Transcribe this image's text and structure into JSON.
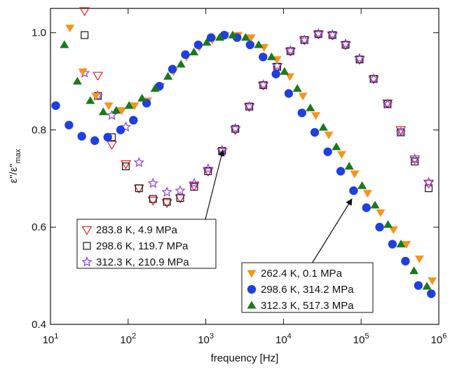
{
  "chart_data": {
    "type": "scatter",
    "xlabel": "frequency [Hz]",
    "ylabel": {
      "text": "ε\"/ε\"",
      "sub": "max"
    },
    "xscale": "log",
    "xlim": [
      10,
      1000000
    ],
    "ylim": [
      0.4,
      1.05
    ],
    "xticks": [
      {
        "value": 10,
        "label": "10",
        "exponent": "1"
      },
      {
        "value": 100,
        "label": "10",
        "exponent": "2"
      },
      {
        "value": 1000,
        "label": "10",
        "exponent": "3"
      },
      {
        "value": 10000,
        "label": "10",
        "exponent": "4"
      },
      {
        "value": 100000,
        "label": "10",
        "exponent": "5"
      },
      {
        "value": 1000000,
        "label": "10",
        "exponent": "6"
      }
    ],
    "yticks": [
      0.4,
      0.6,
      0.8,
      {
        "value": 1,
        "label": "1.0"
      }
    ],
    "series": [
      {
        "name": "283.8 K, 4.9 MPa",
        "color": "#e8202a",
        "marker": "triangle-down",
        "filled": false,
        "legend": "left",
        "x": [
          27.5,
          40.7,
          61.7,
          93.3,
          138,
          209,
          316,
          468,
          708,
          1070,
          1620,
          2400,
          3630,
          5500,
          8320,
          12300,
          18600,
          28200,
          42700,
          63100,
          95500,
          145000,
          219000,
          324000,
          490000,
          741000
        ],
        "values": [
          1.045,
          0.912,
          0.77,
          0.73,
          0.68,
          0.655,
          0.65,
          0.66,
          0.685,
          0.715,
          0.755,
          0.8,
          0.848,
          0.892,
          0.93,
          0.962,
          0.985,
          0.997,
          0.995,
          0.975,
          0.945,
          0.905,
          0.855,
          0.8,
          0.74,
          0.69
        ]
      },
      {
        "name": "298.6 K, 119.7 MPa",
        "color": "#111111",
        "marker": "square",
        "filled": false,
        "legend": "left",
        "x": [
          27.5,
          40.7,
          61.7,
          93.3,
          138,
          209,
          316,
          468,
          708,
          1070,
          1620,
          2400,
          3630,
          5500,
          8320,
          12300,
          18600,
          28200,
          42700,
          63100,
          95500,
          145000,
          219000,
          324000,
          490000,
          741000
        ],
        "values": [
          0.995,
          0.87,
          0.785,
          0.725,
          0.68,
          0.658,
          0.652,
          0.66,
          0.683,
          0.715,
          0.757,
          0.802,
          0.848,
          0.892,
          0.93,
          0.962,
          0.985,
          0.997,
          0.995,
          0.975,
          0.945,
          0.905,
          0.853,
          0.795,
          0.735,
          0.68
        ]
      },
      {
        "name": "312.3 K, 210.9 MPa",
        "color": "#8a3fd0",
        "marker": "star",
        "filled": false,
        "legend": "left",
        "x": [
          27.5,
          40.7,
          61.7,
          93.3,
          138,
          209,
          316,
          468,
          708,
          1070,
          1620,
          2400,
          3630,
          5500,
          8320,
          12300,
          18600,
          28200,
          42700,
          63100,
          95500,
          145000,
          219000,
          324000,
          490000,
          741000
        ],
        "values": [
          0.917,
          0.87,
          0.83,
          0.806,
          0.733,
          0.69,
          0.672,
          0.675,
          0.69,
          0.72,
          0.758,
          0.803,
          0.848,
          0.893,
          0.932,
          0.963,
          0.985,
          0.998,
          0.996,
          0.977,
          0.947,
          0.905,
          0.853,
          0.795,
          0.74,
          0.692
        ]
      },
      {
        "name": "262.4 K, 0.1 MPa",
        "color": "#f7941d",
        "marker": "triangle-down",
        "filled": true,
        "legend": "right",
        "x": [
          17.8,
          26.1,
          38.3,
          56.2,
          82.5,
          121,
          178,
          261,
          383,
          562,
          825,
          1210,
          1780,
          2610,
          3830,
          5620,
          8250,
          12100,
          17800,
          26100,
          38300,
          56200,
          82500,
          121000,
          178000,
          261000,
          383000,
          562000,
          825000
        ],
        "values": [
          1.01,
          0.92,
          0.87,
          0.85,
          0.84,
          0.85,
          0.86,
          0.89,
          0.92,
          0.95,
          0.97,
          0.985,
          0.995,
          0.995,
          0.99,
          0.97,
          0.945,
          0.91,
          0.87,
          0.83,
          0.79,
          0.75,
          0.71,
          0.67,
          0.63,
          0.595,
          0.565,
          0.535,
          0.49
        ]
      },
      {
        "name": "298.6 K, 314.2 MPa",
        "color": "#1f3fe0",
        "marker": "circle",
        "filled": true,
        "legend": "right",
        "x": [
          11.7,
          17.3,
          25.3,
          37.2,
          54.6,
          80,
          117,
          173,
          253,
          372,
          546,
          800,
          1170,
          1730,
          2530,
          3720,
          5460,
          8000,
          11700,
          17300,
          25300,
          37200,
          54600,
          80000,
          117000,
          173000,
          253000,
          372000,
          546000,
          800000
        ],
        "values": [
          0.85,
          0.81,
          0.787,
          0.778,
          0.785,
          0.8,
          0.82,
          0.855,
          0.89,
          0.925,
          0.955,
          0.975,
          0.99,
          0.995,
          0.99,
          0.975,
          0.95,
          0.915,
          0.875,
          0.835,
          0.795,
          0.755,
          0.715,
          0.675,
          0.64,
          0.6,
          0.565,
          0.53,
          0.48,
          0.463
        ]
      },
      {
        "name": "312.3 K, 517.3 MPa",
        "color": "#1a7a1a",
        "marker": "triangle-up",
        "filled": true,
        "legend": "right",
        "x": [
          15.1,
          22.2,
          32.6,
          47.9,
          70.3,
          103,
          151,
          222,
          326,
          479,
          703,
          1030,
          1510,
          2220,
          3260,
          4790,
          7030,
          10300,
          15100,
          22200,
          32600,
          47900,
          70300,
          103000,
          151000,
          222000,
          326000,
          479000,
          703000
        ],
        "values": [
          0.975,
          0.9,
          0.86,
          0.837,
          0.84,
          0.85,
          0.865,
          0.885,
          0.91,
          0.935,
          0.96,
          0.98,
          0.99,
          0.995,
          0.99,
          0.975,
          0.95,
          0.92,
          0.885,
          0.845,
          0.805,
          0.765,
          0.725,
          0.685,
          0.645,
          0.605,
          0.565,
          0.51,
          0.478
        ]
      }
    ]
  }
}
